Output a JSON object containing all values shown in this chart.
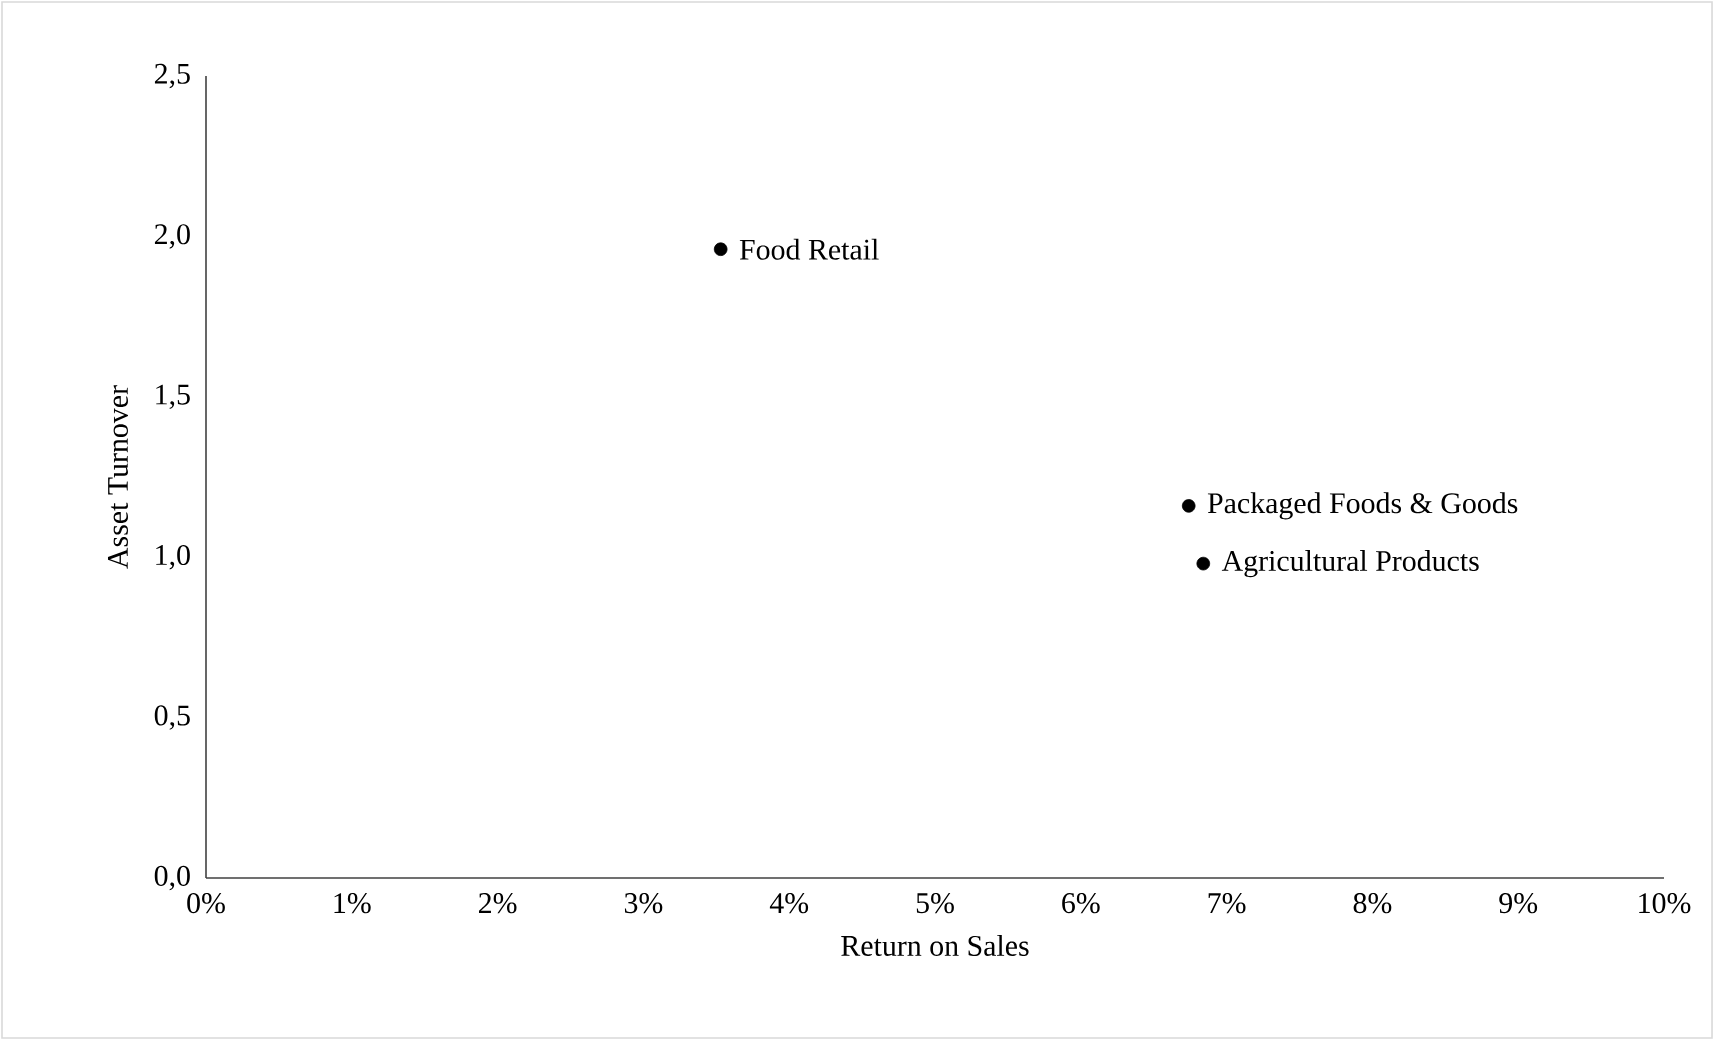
{
  "chart_data": {
    "type": "scatter",
    "xlabel": "Return on Sales",
    "ylabel": "Asset Turnover",
    "series": [
      {
        "color": "#000000",
        "x": [
          3.53,
          6.74,
          6.84
        ],
        "values": [
          1.96,
          1.16,
          0.98
        ]
      }
    ],
    "annotations": [
      {
        "text": "Food Retail",
        "x": 3.53,
        "y": 1.96
      },
      {
        "text": "Packaged Foods & Goods",
        "x": 6.74,
        "y": 1.16
      },
      {
        "text": "Agricultural Products",
        "x": 6.84,
        "y": 0.98
      }
    ],
    "xlim": [
      0,
      10
    ],
    "xticks": [
      {
        "value": 0,
        "label": "0%"
      },
      {
        "value": 1,
        "label": "1%"
      },
      {
        "value": 2,
        "label": "2%"
      },
      {
        "value": 3,
        "label": "3%"
      },
      {
        "value": 4,
        "label": "4%"
      },
      {
        "value": 5,
        "label": "5%"
      },
      {
        "value": 6,
        "label": "6%"
      },
      {
        "value": 7,
        "label": "7%"
      },
      {
        "value": 8,
        "label": "8%"
      },
      {
        "value": 9,
        "label": "9%"
      },
      {
        "value": 10,
        "label": "10%"
      }
    ],
    "ylim": [
      0,
      2.5
    ],
    "yticks": [
      {
        "value": 0,
        "label": "0,0"
      },
      {
        "value": 0.5,
        "label": "0,5"
      },
      {
        "value": 1,
        "label": "1,0"
      },
      {
        "value": 1.5,
        "label": "1,5"
      },
      {
        "value": 2,
        "label": "2,0"
      },
      {
        "value": 2.5,
        "label": "2,5"
      }
    ],
    "marker": "circle",
    "grid": false
  }
}
